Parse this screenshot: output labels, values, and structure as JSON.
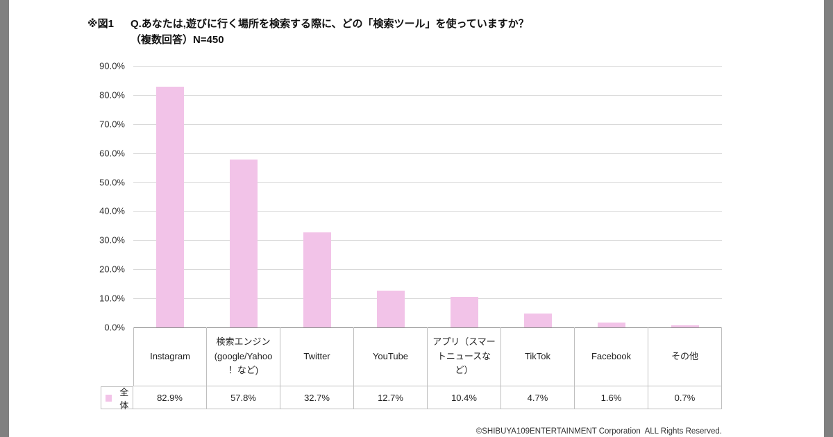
{
  "page": {
    "background": "#ffffff",
    "side_strip_color": "#808080"
  },
  "title": {
    "prefix": "※図1",
    "line1": "Q.あなたは,遊びに行く場所を検索する際に、どの「検索ツール」を使っていますか？",
    "line2": "（複数回答）N=450"
  },
  "footer": {
    "copyright": "©SHIBUYA109ENTERTAINMENT Corporation  ALL Rights Reserved."
  },
  "chart_data": {
    "type": "bar",
    "title": "Q.あなたは,遊びに行く場所を検索する際に、どの「検索ツール」を使っていますか？（複数回答）N=450",
    "categories": [
      "Instagram",
      "検索エンジン(google/Yahoo！など)",
      "Twitter",
      "YouTube",
      "アプリ（スマートニュースなど）",
      "TikTok",
      "Facebook",
      "その他"
    ],
    "categories_display": [
      "Instagram",
      "検索エンジン\n(google/Yahoo\n！など)",
      "Twitter",
      "YouTube",
      "アプリ（スマー\nトニュースな\nど）",
      "TikTok",
      "Facebook",
      "その他"
    ],
    "series": [
      {
        "name": "全体",
        "values": [
          82.9,
          57.8,
          32.7,
          12.7,
          10.4,
          4.7,
          1.6,
          0.7
        ]
      }
    ],
    "value_labels": [
      "82.9%",
      "57.8%",
      "32.7%",
      "12.7%",
      "10.4%",
      "4.7%",
      "1.6%",
      "0.7%"
    ],
    "xlabel": "",
    "ylabel": "",
    "ylim": [
      0,
      90
    ],
    "y_ticks": [
      "90.0%",
      "80.0%",
      "70.0%",
      "60.0%",
      "50.0%",
      "40.0%",
      "30.0%",
      "20.0%",
      "10.0%",
      "0.0%"
    ],
    "grid": true,
    "legend_position": "bottom-left",
    "bar_color": "#f2c3e8"
  }
}
